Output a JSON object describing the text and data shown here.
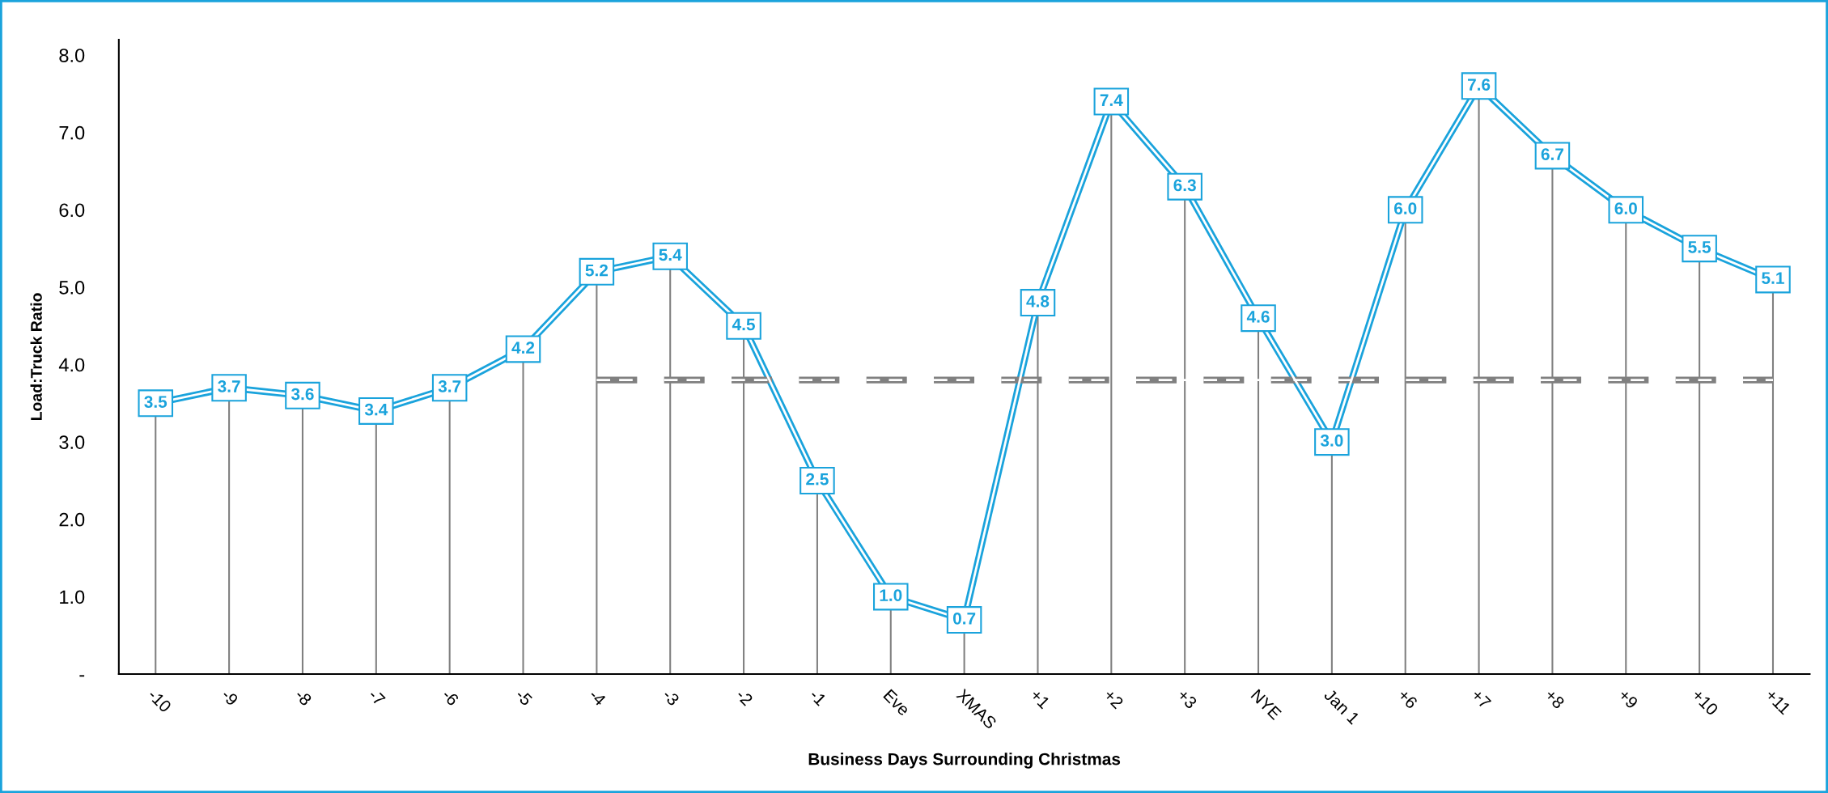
{
  "chart_data": {
    "type": "line",
    "xlabel": "Business Days Surrounding Christmas",
    "ylabel": "Load:Truck Ratio",
    "categories": [
      "-10",
      "-9",
      "-8",
      "-7",
      "-6",
      "-5",
      "-4",
      "-3",
      "-2",
      "-1",
      "Eve",
      "XMAS",
      "+1",
      "+2",
      "+3",
      "NYE",
      "Jan 1",
      "+6",
      "+7",
      "+8",
      "+9",
      "+10",
      "+11"
    ],
    "series": [
      {
        "color": "#1aa3dc",
        "marker": "square",
        "value_labels": [
          "3.5",
          "3.7",
          "3.6",
          "3.4",
          "3.7",
          "4.2",
          "5.2",
          "5.4",
          "4.5",
          "2.5",
          "1.0",
          "0.7",
          "4.8",
          "7.4",
          "6.3",
          "4.6",
          "3.0",
          "6.0",
          "7.6",
          "6.7",
          "6.0",
          "5.5",
          "5.1"
        ],
        "values": [
          3.5,
          3.7,
          3.6,
          3.4,
          3.7,
          4.2,
          5.2,
          5.4,
          4.5,
          2.5,
          1.0,
          0.7,
          4.8,
          7.4,
          6.3,
          4.6,
          3.0,
          6.0,
          7.6,
          6.7,
          6.0,
          5.5,
          5.1
        ]
      },
      {
        "color": "#808080",
        "line_style": "dashed",
        "values": [
          null,
          null,
          null,
          null,
          null,
          null,
          3.8,
          3.8,
          3.8,
          3.8,
          3.8,
          3.8,
          3.8,
          3.8,
          3.8,
          3.8,
          3.8,
          3.8,
          3.8,
          3.8,
          3.8,
          3.8,
          3.8
        ]
      }
    ],
    "ylim": [
      0,
      8.2
    ],
    "yticks": [
      {
        "value": 0,
        "label": "-"
      },
      {
        "value": 1,
        "label": "1.0"
      },
      {
        "value": 2,
        "label": "2.0"
      },
      {
        "value": 3,
        "label": "3.0"
      },
      {
        "value": 4,
        "label": "4.0"
      },
      {
        "value": 5,
        "label": "5.0"
      },
      {
        "value": 6,
        "label": "6.0"
      },
      {
        "value": 7,
        "label": "7.0"
      },
      {
        "value": 8,
        "label": "8.0"
      }
    ],
    "grid": false,
    "legend": false
  }
}
